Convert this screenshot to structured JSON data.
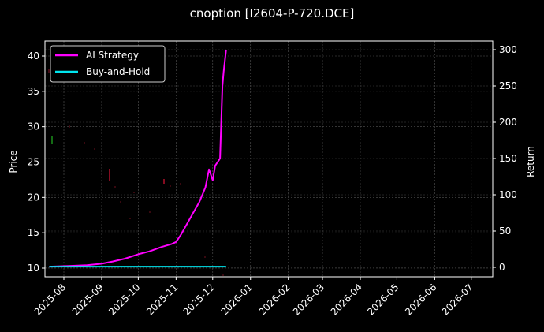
{
  "title": "cnoption [I2604-P-720.DCE]",
  "chart_data": {
    "type": "line",
    "title": "cnoption [I2604-P-720.DCE]",
    "xlabel": "",
    "ylabel": "Price",
    "ylabel_right": "Return",
    "x_ticks": [
      "2025-08",
      "2025-09",
      "2025-10",
      "2025-11",
      "2025-12",
      "2026-01",
      "2026-02",
      "2026-03",
      "2026-04",
      "2026-05",
      "2026-06",
      "2026-07"
    ],
    "y_ticks_left": [
      10,
      15,
      20,
      25,
      30,
      35,
      40
    ],
    "y_ticks_right": [
      0,
      50,
      100,
      150,
      200,
      250,
      300
    ],
    "ylim_left": [
      8.5,
      42
    ],
    "ylim_right": [
      -15,
      310
    ],
    "grid": true,
    "legend_position": "upper left",
    "series": [
      {
        "name": "AI Strategy",
        "axis": "right",
        "color": "#ff00ff",
        "x": [
          "2025-07-20",
          "2025-08-05",
          "2025-08-20",
          "2025-09-01",
          "2025-09-10",
          "2025-09-20",
          "2025-10-01",
          "2025-10-10",
          "2025-10-20",
          "2025-10-28",
          "2025-11-01",
          "2025-11-05",
          "2025-11-10",
          "2025-11-15",
          "2025-11-20",
          "2025-11-25",
          "2025-11-28",
          "2025-12-01",
          "2025-12-03",
          "2025-12-05",
          "2025-12-07",
          "2025-12-09",
          "2025-12-10",
          "2025-12-12"
        ],
        "values": [
          1,
          2,
          3,
          5,
          8,
          12,
          18,
          22,
          28,
          32,
          35,
          45,
          60,
          75,
          90,
          110,
          135,
          120,
          140,
          145,
          150,
          250,
          270,
          300
        ]
      },
      {
        "name": "Buy-and-Hold",
        "axis": "right",
        "color": "#00e5ee",
        "x": [
          "2025-07-20",
          "2025-12-12"
        ],
        "values": [
          1,
          1
        ]
      }
    ],
    "candles_note": "faint red/green price candlesticks on left axis, scattered 11-37 range"
  },
  "legend": {
    "items": [
      {
        "label": "AI Strategy",
        "color": "#ff00ff"
      },
      {
        "label": "Buy-and-Hold",
        "color": "#00e5ee"
      }
    ]
  },
  "axes": {
    "left_label": "Price",
    "right_label": "Return"
  }
}
